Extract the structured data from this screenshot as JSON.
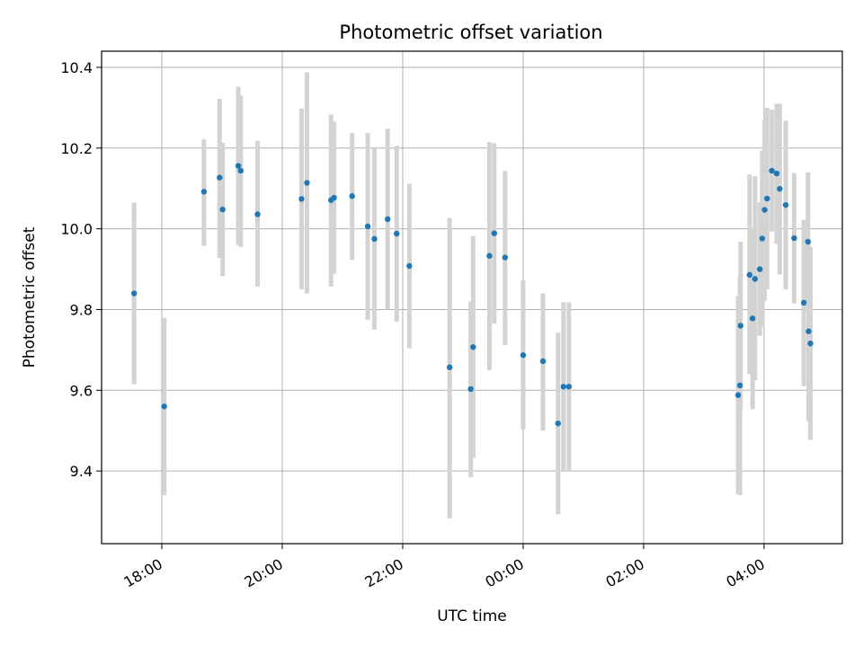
{
  "chart_data": {
    "type": "scatter",
    "title": "Photometric offset variation",
    "xlabel": "UTC time",
    "ylabel": "Photometric offset",
    "x_unit": "hours since 00:00 UTC (negative = previous day)",
    "xlim": [
      -7.0,
      5.3
    ],
    "ylim": [
      9.22,
      10.44
    ],
    "xticks": [
      {
        "value": -6,
        "label": "18:00"
      },
      {
        "value": -4,
        "label": "20:00"
      },
      {
        "value": -2,
        "label": "22:00"
      },
      {
        "value": 0,
        "label": "00:00"
      },
      {
        "value": 2,
        "label": "02:00"
      },
      {
        "value": 4,
        "label": "04:00"
      }
    ],
    "yticks": [
      {
        "value": 9.4,
        "label": "9.4"
      },
      {
        "value": 9.6,
        "label": "9.6"
      },
      {
        "value": 9.8,
        "label": "9.8"
      },
      {
        "value": 10.0,
        "label": "10.0"
      },
      {
        "value": 10.2,
        "label": "10.2"
      },
      {
        "value": 10.4,
        "label": "10.4"
      }
    ],
    "grid": true,
    "marker_color": "#1f77b4",
    "errorbar_color": "#d3d3d3",
    "points": [
      {
        "x": -6.46,
        "y": 9.84,
        "lo": 9.615,
        "hi": 10.065
      },
      {
        "x": -5.96,
        "y": 9.56,
        "lo": 9.34,
        "hi": 9.78
      },
      {
        "x": -5.3,
        "y": 10.092,
        "lo": 9.958,
        "hi": 10.222
      },
      {
        "x": -5.04,
        "y": 10.127,
        "lo": 9.928,
        "hi": 10.322
      },
      {
        "x": -4.99,
        "y": 10.048,
        "lo": 9.883,
        "hi": 10.213
      },
      {
        "x": -4.73,
        "y": 10.156,
        "lo": 9.96,
        "hi": 10.352
      },
      {
        "x": -4.69,
        "y": 10.144,
        "lo": 9.955,
        "hi": 10.33
      },
      {
        "x": -4.41,
        "y": 10.036,
        "lo": 9.857,
        "hi": 10.218
      },
      {
        "x": -3.68,
        "y": 10.074,
        "lo": 9.85,
        "hi": 10.298
      },
      {
        "x": -3.59,
        "y": 10.114,
        "lo": 9.84,
        "hi": 10.388
      },
      {
        "x": -3.19,
        "y": 10.071,
        "lo": 9.857,
        "hi": 10.283
      },
      {
        "x": -3.14,
        "y": 10.077,
        "lo": 9.889,
        "hi": 10.265
      },
      {
        "x": -2.84,
        "y": 10.081,
        "lo": 9.923,
        "hi": 10.238
      },
      {
        "x": -2.58,
        "y": 10.006,
        "lo": 9.775,
        "hi": 10.237
      },
      {
        "x": -2.47,
        "y": 9.975,
        "lo": 9.75,
        "hi": 10.2
      },
      {
        "x": -2.25,
        "y": 10.024,
        "lo": 9.8,
        "hi": 10.248
      },
      {
        "x": -2.1,
        "y": 9.988,
        "lo": 9.77,
        "hi": 10.206
      },
      {
        "x": -1.89,
        "y": 9.908,
        "lo": 9.704,
        "hi": 10.112
      },
      {
        "x": -1.22,
        "y": 9.657,
        "lo": 9.283,
        "hi": 10.027
      },
      {
        "x": -0.87,
        "y": 9.603,
        "lo": 9.385,
        "hi": 9.82
      },
      {
        "x": -0.83,
        "y": 9.707,
        "lo": 9.432,
        "hi": 9.982
      },
      {
        "x": -0.56,
        "y": 9.933,
        "lo": 9.65,
        "hi": 10.215
      },
      {
        "x": -0.48,
        "y": 9.989,
        "lo": 9.765,
        "hi": 10.212
      },
      {
        "x": -0.3,
        "y": 9.929,
        "lo": 9.712,
        "hi": 10.143
      },
      {
        "x": 0.0,
        "y": 9.687,
        "lo": 9.503,
        "hi": 9.872
      },
      {
        "x": 0.33,
        "y": 9.672,
        "lo": 9.5,
        "hi": 9.84
      },
      {
        "x": 0.58,
        "y": 9.518,
        "lo": 9.293,
        "hi": 9.743
      },
      {
        "x": 0.67,
        "y": 9.609,
        "lo": 9.4,
        "hi": 9.818
      },
      {
        "x": 0.76,
        "y": 9.609,
        "lo": 9.4,
        "hi": 9.818
      },
      {
        "x": 3.57,
        "y": 9.588,
        "lo": 9.343,
        "hi": 9.833
      },
      {
        "x": 3.6,
        "y": 9.612,
        "lo": 9.34,
        "hi": 9.882
      },
      {
        "x": 3.61,
        "y": 9.76,
        "lo": 9.55,
        "hi": 9.968
      },
      {
        "x": 3.76,
        "y": 9.886,
        "lo": 9.64,
        "hi": 10.135
      },
      {
        "x": 3.81,
        "y": 9.778,
        "lo": 9.553,
        "hi": 10.003
      },
      {
        "x": 3.85,
        "y": 9.876,
        "lo": 9.625,
        "hi": 10.13
      },
      {
        "x": 3.93,
        "y": 9.9,
        "lo": 9.735,
        "hi": 10.066
      },
      {
        "x": 3.97,
        "y": 9.976,
        "lo": 9.757,
        "hi": 10.194
      },
      {
        "x": 4.01,
        "y": 10.047,
        "lo": 9.822,
        "hi": 10.27
      },
      {
        "x": 4.05,
        "y": 10.075,
        "lo": 9.85,
        "hi": 10.3
      },
      {
        "x": 4.13,
        "y": 10.144,
        "lo": 9.993,
        "hi": 10.295
      },
      {
        "x": 4.21,
        "y": 10.137,
        "lo": 9.963,
        "hi": 10.31
      },
      {
        "x": 4.26,
        "y": 10.099,
        "lo": 9.887,
        "hi": 10.31
      },
      {
        "x": 4.36,
        "y": 10.059,
        "lo": 9.85,
        "hi": 10.268
      },
      {
        "x": 4.5,
        "y": 9.977,
        "lo": 9.815,
        "hi": 10.138
      },
      {
        "x": 4.66,
        "y": 9.817,
        "lo": 9.61,
        "hi": 10.022
      },
      {
        "x": 4.73,
        "y": 9.968,
        "lo": 9.795,
        "hi": 10.14
      },
      {
        "x": 4.74,
        "y": 9.746,
        "lo": 9.523,
        "hi": 9.968
      },
      {
        "x": 4.77,
        "y": 9.716,
        "lo": 9.477,
        "hi": 9.955
      }
    ]
  }
}
